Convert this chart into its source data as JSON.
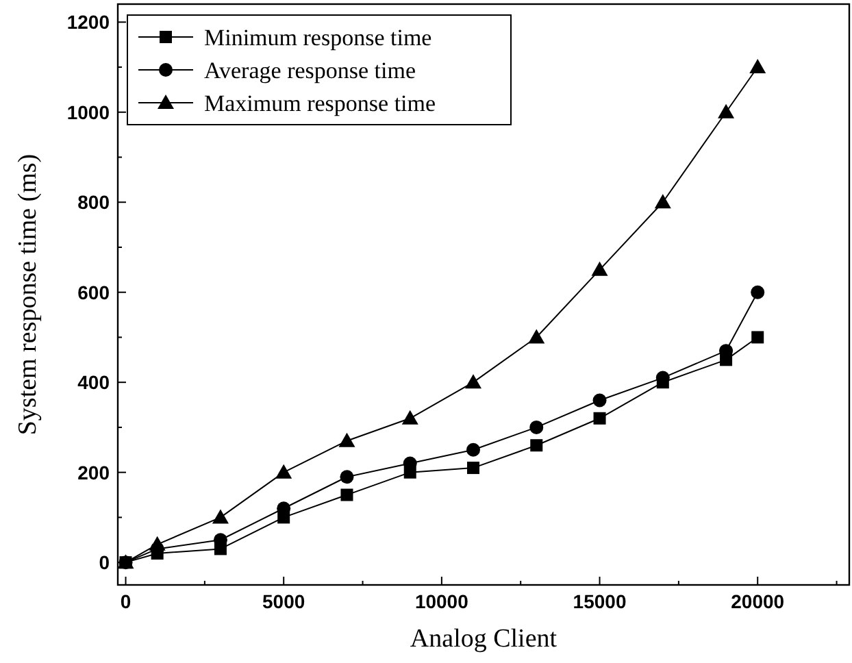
{
  "chart_data": {
    "type": "line",
    "xlabel": "Analog Client",
    "ylabel": "System response time (ms)",
    "x": [
      0,
      1000,
      3000,
      5000,
      7000,
      9000,
      11000,
      13000,
      15000,
      17000,
      19000,
      20000
    ],
    "series": [
      {
        "name": "Minimum response time",
        "color": "#000000",
        "marker": "square",
        "values": [
          0,
          20,
          30,
          100,
          150,
          200,
          210,
          260,
          320,
          400,
          450,
          500
        ]
      },
      {
        "name": "Average response time",
        "color": "#000000",
        "marker": "circle",
        "values": [
          0,
          30,
          50,
          120,
          190,
          220,
          250,
          300,
          360,
          410,
          470,
          600
        ]
      },
      {
        "name": "Maximum response time",
        "color": "#000000",
        "marker": "triangle",
        "values": [
          0,
          40,
          100,
          200,
          270,
          320,
          400,
          500,
          650,
          800,
          1000,
          1100
        ]
      }
    ],
    "xlim": [
      -250,
      22900
    ],
    "ylim": [
      -50,
      1240
    ],
    "xticks": [
      0,
      {
        "value": 2500,
        "label": null
      },
      5000,
      {
        "value": 7500,
        "label": null
      },
      10000,
      {
        "value": 12500,
        "label": null
      },
      15000,
      {
        "value": 17500,
        "label": null
      },
      20000,
      {
        "value": 22500,
        "label": null
      }
    ],
    "yticks": [
      0,
      {
        "value": 100,
        "label": null
      },
      200,
      {
        "value": 300,
        "label": null
      },
      400,
      {
        "value": 500,
        "label": null
      },
      600,
      {
        "value": 700,
        "label": null
      },
      800,
      {
        "value": 900,
        "label": null
      },
      1000,
      {
        "value": 1100,
        "label": null
      },
      1200
    ],
    "legend": "top left",
    "grid": false,
    "line_style": "solid"
  }
}
